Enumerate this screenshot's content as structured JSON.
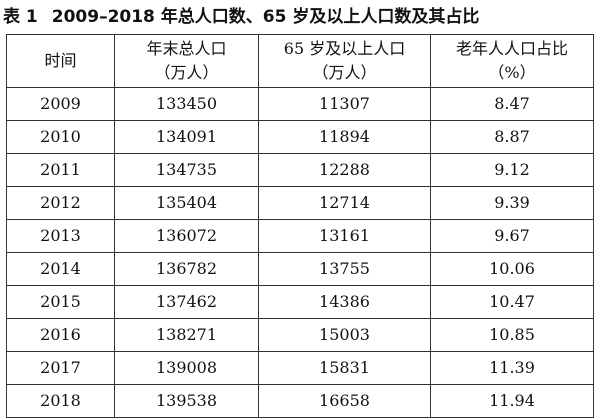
{
  "caption": {
    "number": "表 1",
    "title": "2009–2018 年总人口数、65 岁及以上人口数及其占比"
  },
  "table": {
    "headers": [
      {
        "line1": "时间",
        "line2": ""
      },
      {
        "line1": "年末总人口",
        "line2": "（万人）"
      },
      {
        "line1": "65 岁及以上人口",
        "line2": "（万人）"
      },
      {
        "line1": "老年人人口占比",
        "line2": "（%）"
      }
    ],
    "rows": [
      [
        "2009",
        "133450",
        "11307",
        "8.47"
      ],
      [
        "2010",
        "134091",
        "11894",
        "8.87"
      ],
      [
        "2011",
        "134735",
        "12288",
        "9.12"
      ],
      [
        "2012",
        "135404",
        "12714",
        "9.39"
      ],
      [
        "2013",
        "136072",
        "13161",
        "9.67"
      ],
      [
        "2014",
        "136782",
        "13755",
        "10.06"
      ],
      [
        "2015",
        "137462",
        "14386",
        "10.47"
      ],
      [
        "2016",
        "138271",
        "15003",
        "10.85"
      ],
      [
        "2017",
        "139008",
        "15831",
        "11.39"
      ],
      [
        "2018",
        "139538",
        "16658",
        "11.94"
      ]
    ]
  }
}
